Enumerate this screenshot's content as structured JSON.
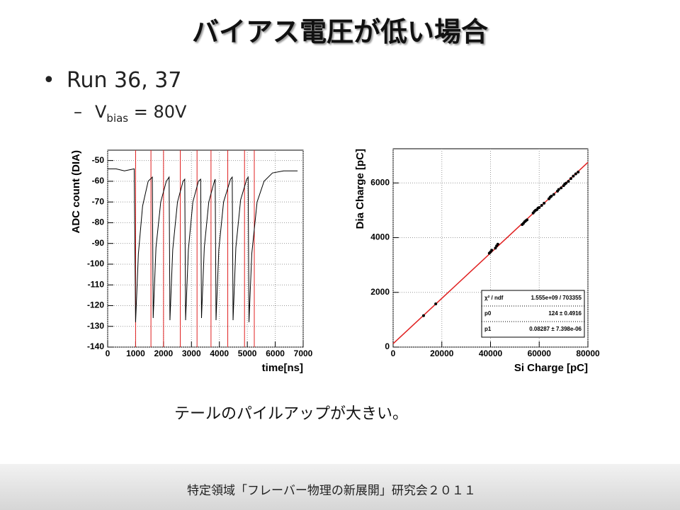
{
  "title": "バイアス電圧が低い場合",
  "bullet": "Run 36, 37",
  "sub_bullet": {
    "main": "V",
    "subscript": "bias",
    "rest": " = 80V"
  },
  "caption": "テールのパイルアップが大きい。",
  "footer": "特定領域「フレーバー物理の新展開」研究会２０１１",
  "chart_data": [
    {
      "type": "line",
      "x_label": "time[ns]",
      "y_label": "ADC count (DIA)",
      "xlim": [
        0,
        7000
      ],
      "ylim": [
        -140,
        -45
      ],
      "xticks": [
        0,
        1000,
        2000,
        3000,
        4000,
        5000,
        6000,
        7000
      ],
      "yticks": [
        -140,
        -130,
        -120,
        -110,
        -100,
        -90,
        -80,
        -70,
        -60,
        -50
      ],
      "grid": true,
      "x": [
        0,
        300,
        600,
        950,
        1000,
        1100,
        1250,
        1450,
        1600,
        1630,
        1730,
        1900,
        2100,
        2200,
        2230,
        2330,
        2500,
        2700,
        2760,
        2790,
        2890,
        3050,
        3250,
        3330,
        3360,
        3460,
        3620,
        3820,
        3850,
        3880,
        3980,
        4150,
        4400,
        4460,
        4490,
        4590,
        4760,
        4980,
        5030,
        5060,
        5160,
        5350,
        5600,
        5900,
        6300,
        6800
      ],
      "series": [
        {
          "color": "#000000",
          "values": [
            -54,
            -54,
            -55,
            -54,
            -128,
            -95,
            -72,
            -60,
            -58,
            -126,
            -92,
            -70,
            -60,
            -58,
            -127,
            -93,
            -70,
            -60,
            -59,
            -127,
            -93,
            -70,
            -60,
            -59,
            -126,
            -92,
            -70,
            -60,
            -59,
            -127,
            -93,
            -70,
            -59,
            -58,
            -127,
            -92,
            -69,
            -59,
            -58,
            -128,
            -95,
            -70,
            -60,
            -56,
            -55,
            -55
          ]
        }
      ],
      "vlines": {
        "color": "#e02020",
        "values": [
          1000,
          1550,
          2000,
          2600,
          3200,
          3700,
          4300,
          4900,
          5250
        ]
      }
    },
    {
      "type": "scatter",
      "x_label": "Si Charge [pC]",
      "y_label": "Dia Charge [pC]",
      "xlim": [
        0,
        80000
      ],
      "ylim": [
        0,
        7250
      ],
      "xticks": [
        0,
        20000,
        40000,
        60000,
        80000
      ],
      "yticks": [
        0,
        2000,
        4000,
        6000
      ],
      "grid": true,
      "x": [
        12500,
        17500,
        39500,
        40000,
        40500,
        42000,
        42500,
        43000,
        53000,
        53500,
        54000,
        54500,
        55000,
        57500,
        58000,
        58500,
        59000,
        59500,
        60000,
        61000,
        62000,
        64000,
        64500,
        65000,
        66000,
        67500,
        68000,
        69000,
        70000,
        70500,
        71000,
        72000,
        73000,
        74000,
        75000,
        76000
      ],
      "series": [
        {
          "color": "#000000",
          "values": [
            1150,
            1580,
            3430,
            3480,
            3540,
            3620,
            3700,
            3760,
            4480,
            4520,
            4580,
            4620,
            4650,
            4900,
            4960,
            5000,
            5020,
            5080,
            5100,
            5180,
            5260,
            5420,
            5480,
            5520,
            5580,
            5700,
            5760,
            5820,
            5900,
            5960,
            5990,
            6060,
            6160,
            6250,
            6330,
            6400
          ]
        }
      ],
      "fit": {
        "color": "#e02020",
        "x": [
          0,
          80000
        ],
        "y": [
          124,
          6753.6
        ]
      },
      "stats": [
        [
          "χ² / ndf",
          "1.555e+09 / 703355"
        ],
        [
          "p0",
          "124 ± 0.4916"
        ],
        [
          "p1",
          "0.08287 ± 7.398e-06"
        ]
      ]
    }
  ]
}
